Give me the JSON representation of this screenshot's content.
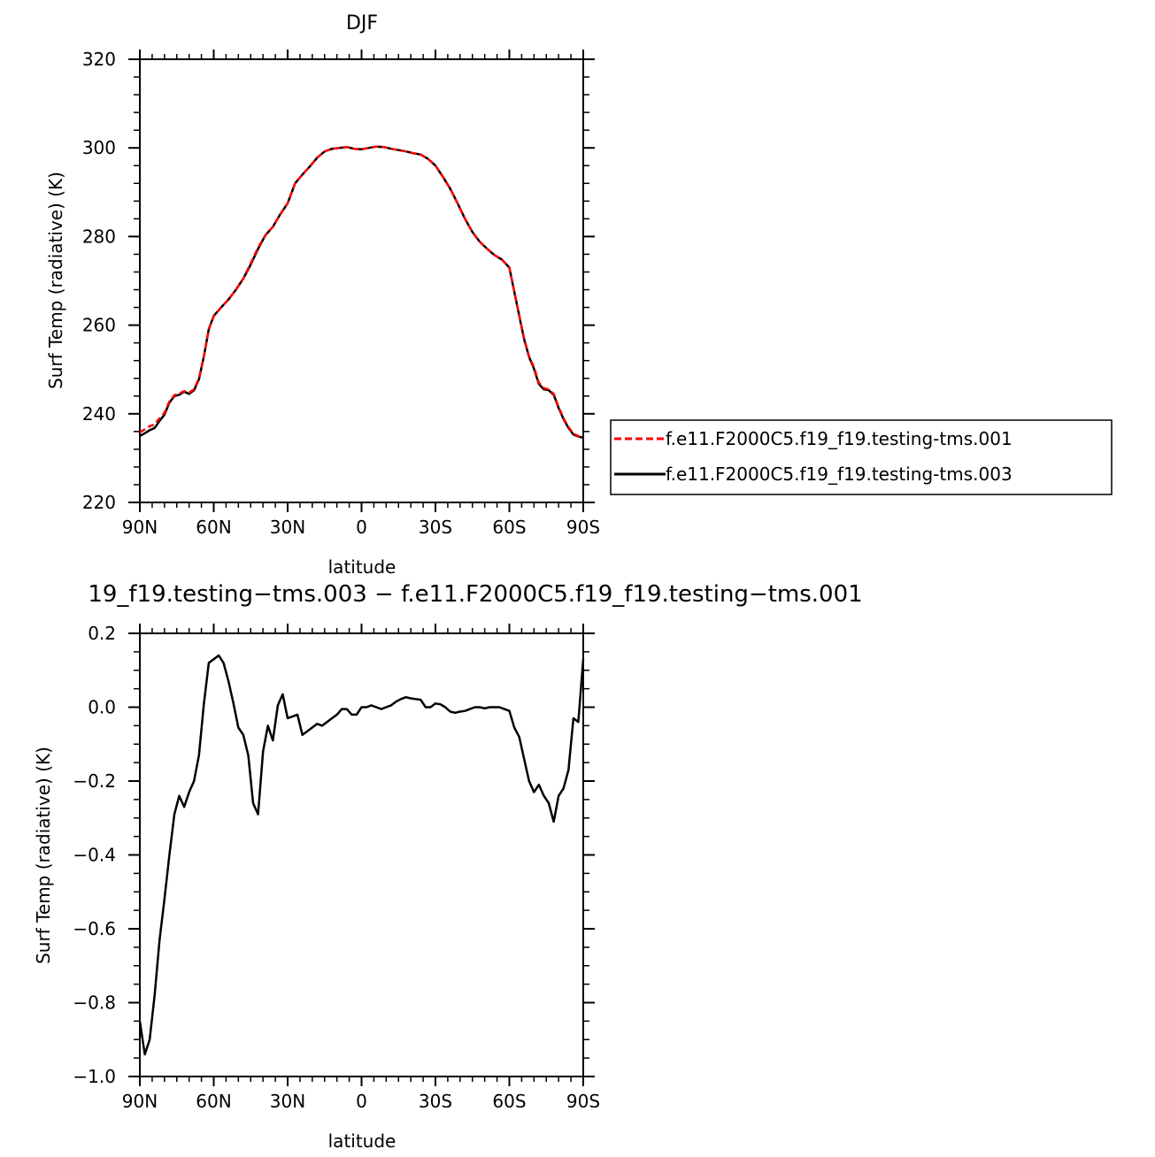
{
  "chart_data": [
    {
      "type": "line",
      "title": "DJF",
      "xlabel": "latitude",
      "ylabel": "Surf Temp (radiative) (K)",
      "xlim": [
        -90,
        90
      ],
      "ylim": [
        220,
        320
      ],
      "x_ticks": [
        -90,
        -60,
        -30,
        0,
        30,
        60,
        90
      ],
      "x_tick_labels": [
        "90N",
        "60N",
        "30N",
        "0",
        "30S",
        "60S",
        "90S"
      ],
      "y_ticks": [
        220,
        240,
        260,
        280,
        300,
        320
      ],
      "y_tick_labels": [
        "220",
        "240",
        "260",
        "280",
        "300",
        "320"
      ],
      "grid": false,
      "legend_position": "right",
      "series": [
        {
          "name": "f.e11.F2000C5.f19_f19.testing-tms.001",
          "color": "#ff0000",
          "dash": "dashed",
          "x": [
            -90,
            -88,
            -86,
            -84,
            -82,
            -80,
            -78,
            -76,
            -74,
            -72,
            -70,
            -68,
            -66,
            -64,
            -62,
            -60,
            -57,
            -54,
            -51,
            -48,
            -45,
            -42,
            -39,
            -36,
            -33,
            -30,
            -27,
            -24,
            -21,
            -18,
            -15,
            -12,
            -9,
            -6,
            -3,
            0,
            3,
            6,
            9,
            12,
            15,
            18,
            21,
            24,
            27,
            30,
            33,
            36,
            39,
            42,
            45,
            48,
            51,
            54,
            57,
            60,
            63,
            66,
            68,
            70,
            72,
            74,
            76,
            78,
            80,
            82,
            84,
            86,
            88,
            90
          ],
          "values": [
            235.8,
            236.5,
            237.2,
            237.6,
            239.0,
            240.2,
            242.8,
            244.2,
            244.6,
            245.1,
            244.8,
            245.5,
            248.0,
            253.0,
            259.0,
            262.0,
            264.0,
            265.8,
            268.0,
            270.5,
            274.0,
            277.5,
            280.3,
            282.2,
            285.0,
            287.5,
            292.0,
            294.0,
            295.8,
            297.8,
            299.2,
            299.8,
            300.0,
            300.2,
            299.8,
            299.7,
            300.0,
            300.3,
            300.2,
            299.8,
            299.5,
            299.2,
            298.8,
            298.5,
            297.5,
            296.0,
            293.5,
            290.8,
            287.5,
            284.0,
            281.0,
            278.8,
            277.2,
            275.8,
            274.8,
            273.0,
            265.0,
            257.0,
            253.0,
            250.5,
            247.0,
            245.8,
            245.5,
            244.5,
            241.5,
            239.0,
            237.0,
            235.5,
            235.0,
            234.5
          ]
        },
        {
          "name": "f.e11.F2000C5.f19_f19.testing-tms.003",
          "color": "#000000",
          "dash": "solid",
          "x": [
            -90,
            -88,
            -86,
            -84,
            -82,
            -80,
            -78,
            -76,
            -74,
            -72,
            -70,
            -68,
            -66,
            -64,
            -62,
            -60,
            -57,
            -54,
            -51,
            -48,
            -45,
            -42,
            -39,
            -36,
            -33,
            -30,
            -27,
            -24,
            -21,
            -18,
            -15,
            -12,
            -9,
            -6,
            -3,
            0,
            3,
            6,
            9,
            12,
            15,
            18,
            21,
            24,
            27,
            30,
            33,
            36,
            39,
            42,
            45,
            48,
            51,
            54,
            57,
            60,
            63,
            66,
            68,
            70,
            72,
            74,
            76,
            78,
            80,
            82,
            84,
            86,
            88,
            90
          ],
          "values": [
            235.0,
            235.6,
            236.3,
            236.8,
            238.4,
            239.8,
            242.5,
            244.0,
            244.3,
            245.0,
            244.5,
            245.3,
            247.8,
            253.0,
            259.1,
            262.1,
            264.0,
            265.8,
            268.0,
            270.5,
            273.7,
            277.2,
            280.3,
            282.2,
            285.0,
            287.5,
            292.0,
            294.0,
            295.8,
            297.8,
            299.2,
            299.8,
            300.0,
            300.2,
            299.8,
            299.7,
            300.0,
            300.3,
            300.2,
            299.8,
            299.5,
            299.2,
            298.8,
            298.5,
            297.5,
            296.0,
            293.5,
            290.8,
            287.5,
            284.0,
            281.0,
            278.8,
            277.2,
            275.8,
            274.8,
            273.0,
            264.9,
            256.8,
            252.8,
            250.2,
            246.7,
            245.5,
            245.3,
            244.3,
            241.3,
            238.8,
            236.8,
            235.3,
            234.9,
            234.6
          ]
        }
      ]
    },
    {
      "type": "line",
      "title": "19_f19.testing−tms.003 − f.e11.F2000C5.f19_f19.testing−tms.001",
      "xlabel": "latitude",
      "ylabel": "Surf Temp (radiative) (K)",
      "xlim": [
        -90,
        90
      ],
      "ylim": [
        -1.0,
        0.2
      ],
      "x_ticks": [
        -90,
        -60,
        -30,
        0,
        30,
        60,
        90
      ],
      "x_tick_labels": [
        "90N",
        "60N",
        "30N",
        "0",
        "30S",
        "60S",
        "90S"
      ],
      "y_ticks": [
        -1.0,
        -0.8,
        -0.6,
        -0.4,
        -0.2,
        0.0,
        0.2
      ],
      "y_tick_labels": [
        "−1.0",
        "−0.8",
        "−0.6",
        "−0.4",
        "−0.2",
        "0.0",
        "0.2"
      ],
      "grid": false,
      "series": [
        {
          "color": "#000000",
          "dash": "solid",
          "x": [
            -90,
            -88,
            -86,
            -84,
            -82,
            -80,
            -78,
            -76,
            -74,
            -72,
            -70,
            -68,
            -66,
            -64,
            -62,
            -60,
            -58,
            -56,
            -54,
            -52,
            -50,
            -48,
            -46,
            -44,
            -42,
            -40,
            -38,
            -36,
            -34,
            -32,
            -30,
            -28,
            -26,
            -24,
            -22,
            -20,
            -18,
            -16,
            -14,
            -12,
            -10,
            -8,
            -6,
            -4,
            -2,
            0,
            2,
            4,
            6,
            8,
            10,
            12,
            14,
            16,
            18,
            20,
            22,
            24,
            26,
            28,
            30,
            32,
            34,
            36,
            38,
            40,
            42,
            44,
            46,
            48,
            50,
            52,
            54,
            56,
            58,
            60,
            62,
            64,
            66,
            68,
            70,
            72,
            74,
            76,
            78,
            80,
            82,
            84,
            86,
            88,
            90
          ],
          "values": [
            -0.85,
            -0.94,
            -0.9,
            -0.78,
            -0.63,
            -0.52,
            -0.4,
            -0.29,
            -0.24,
            -0.27,
            -0.23,
            -0.2,
            -0.13,
            0.01,
            0.12,
            0.13,
            0.14,
            0.12,
            0.07,
            0.01,
            -0.055,
            -0.075,
            -0.13,
            -0.26,
            -0.29,
            -0.12,
            -0.05,
            -0.09,
            0.005,
            0.035,
            -0.03,
            -0.025,
            -0.02,
            -0.075,
            -0.065,
            -0.055,
            -0.045,
            -0.05,
            -0.04,
            -0.03,
            -0.02,
            -0.005,
            -0.005,
            -0.02,
            -0.02,
            0.0,
            0.0,
            0.005,
            0.0,
            -0.005,
            0.0,
            0.005,
            0.015,
            0.022,
            0.027,
            0.024,
            0.022,
            0.02,
            0.0,
            0.0,
            0.01,
            0.008,
            0.0,
            -0.012,
            -0.015,
            -0.012,
            -0.01,
            -0.005,
            0.0,
            0.0,
            -0.003,
            0.0,
            0.0,
            0.0,
            -0.005,
            -0.01,
            -0.055,
            -0.08,
            -0.14,
            -0.2,
            -0.23,
            -0.21,
            -0.24,
            -0.26,
            -0.31,
            -0.24,
            -0.22,
            -0.17,
            -0.03,
            -0.04,
            0.13
          ]
        }
      ]
    }
  ]
}
